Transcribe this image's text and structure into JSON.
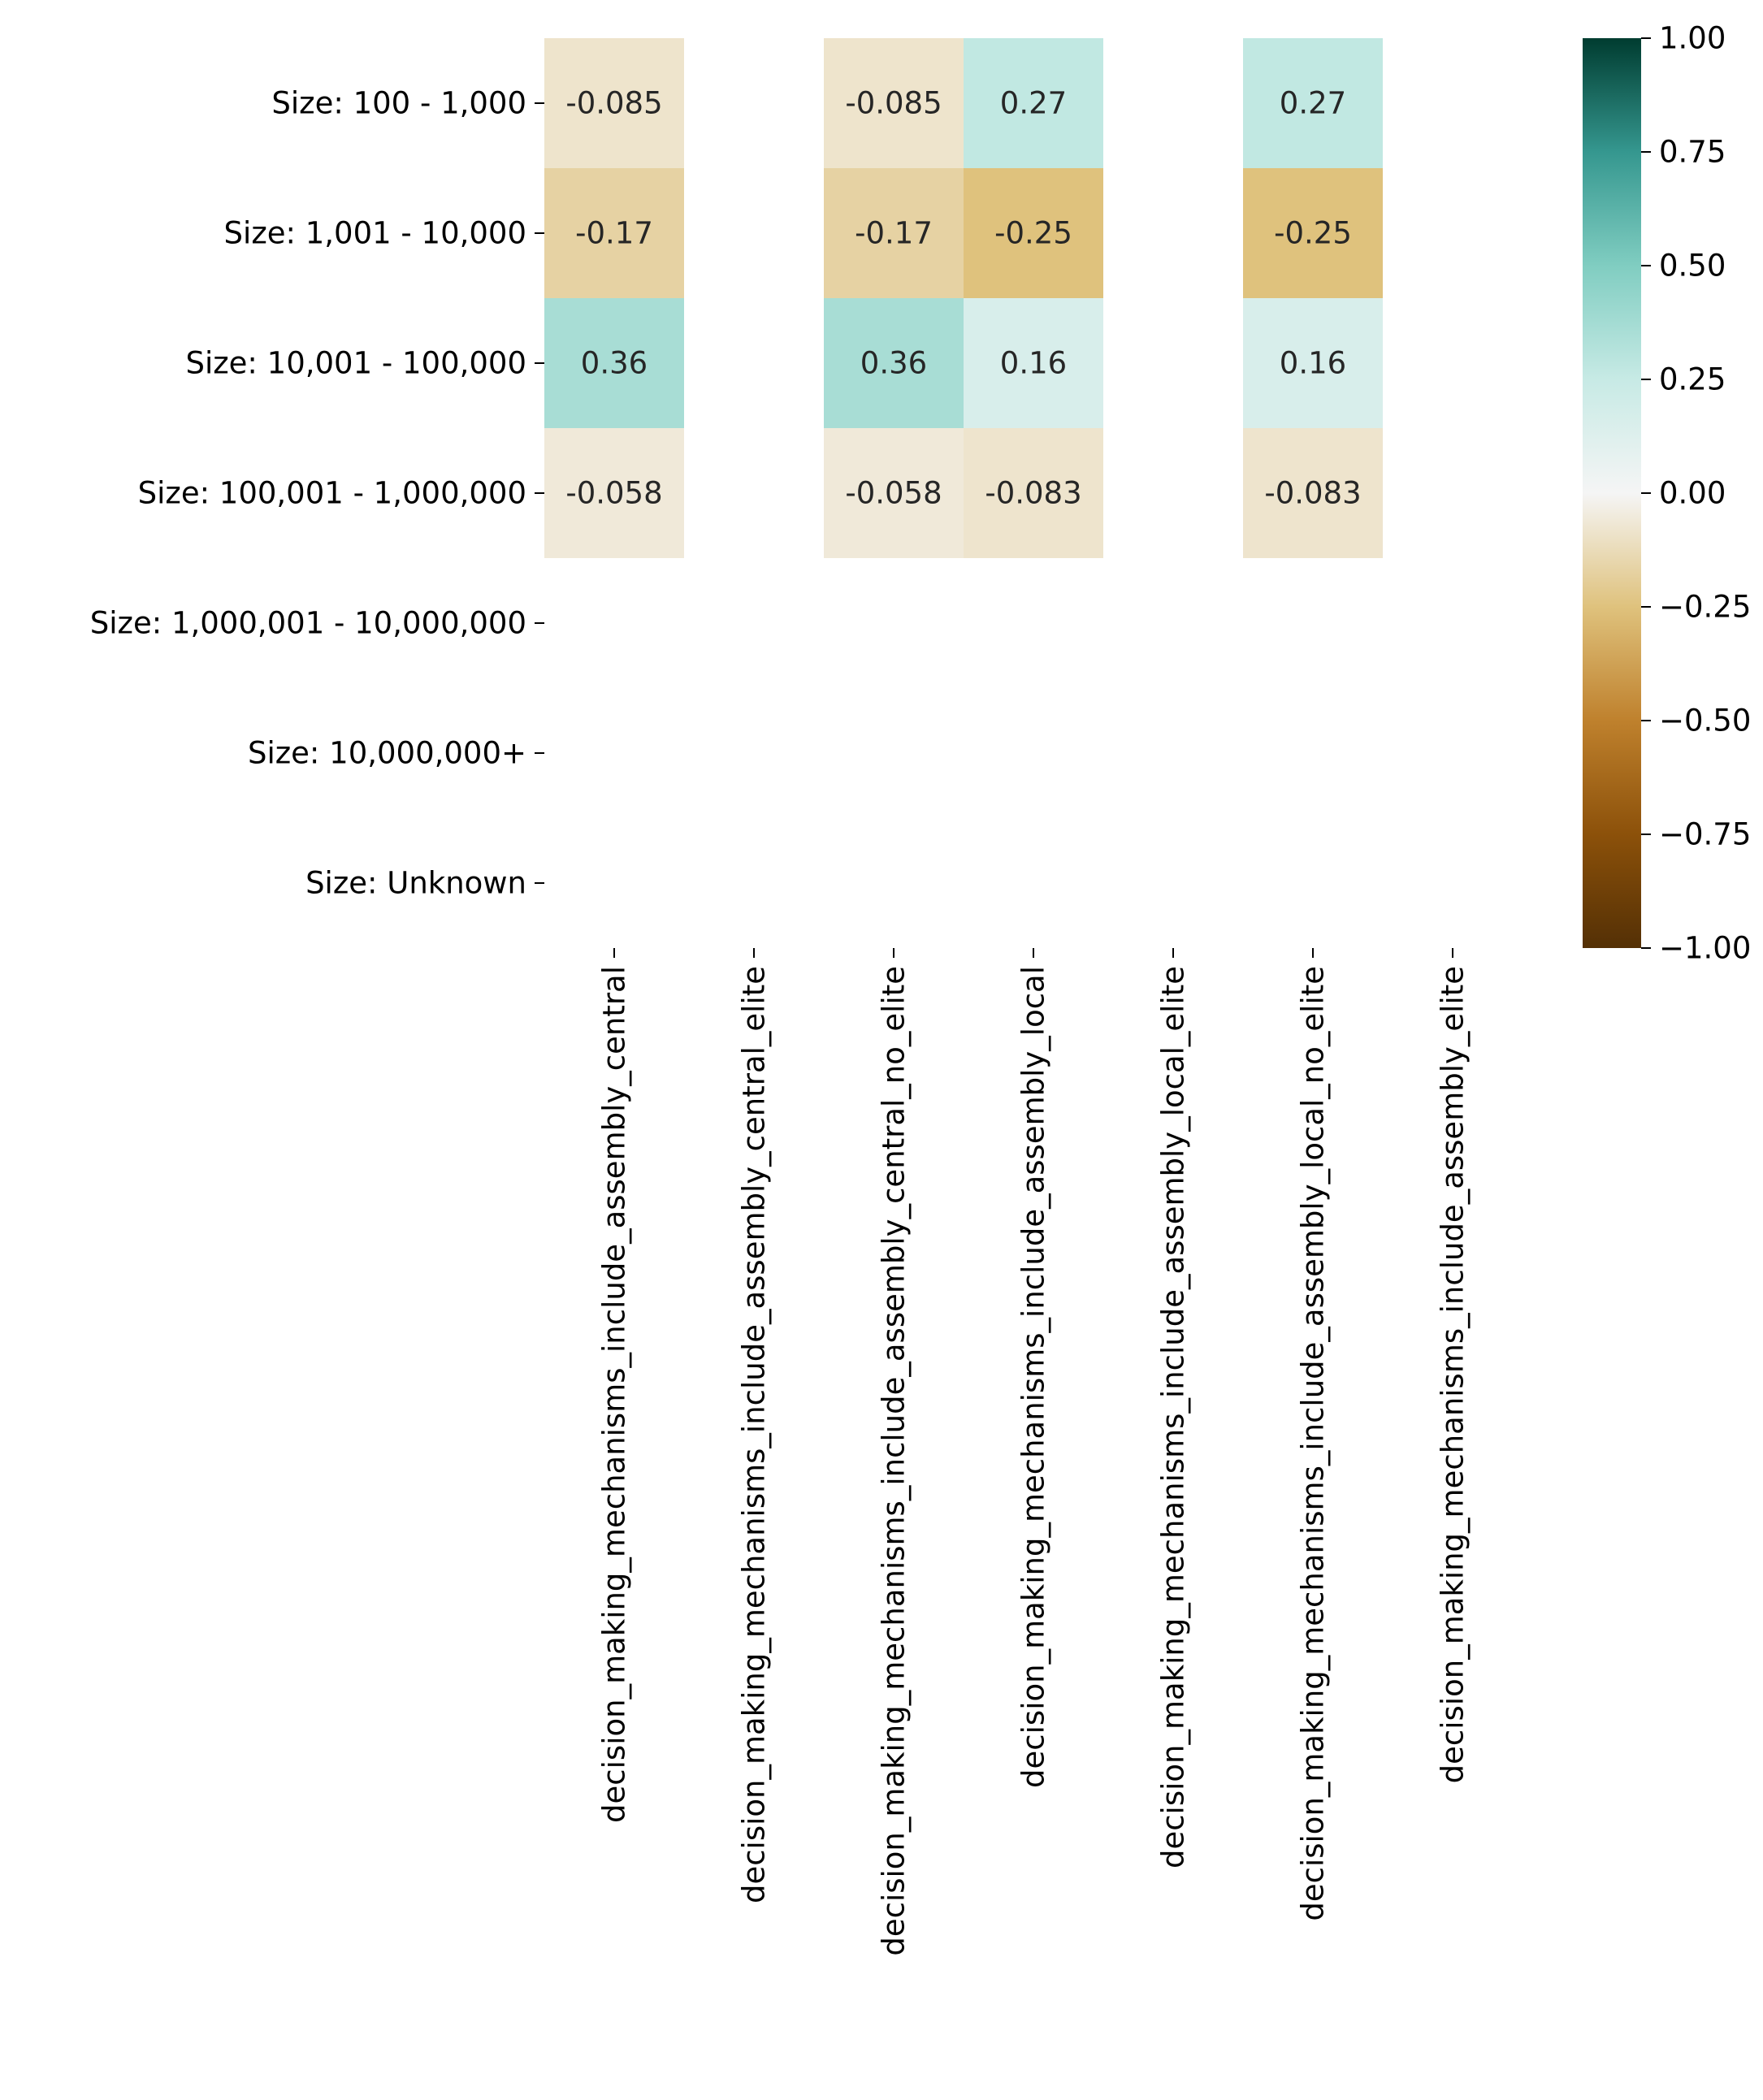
{
  "chart_data": {
    "type": "heatmap",
    "title": "",
    "xlabel": "",
    "ylabel": "",
    "rows": [
      "Size: 100 - 1,000",
      "Size: 1,001 - 10,000",
      "Size: 10,001 - 100,000",
      "Size: 100,001 - 1,000,000",
      "Size: 1,000,001 - 10,000,000",
      "Size: 10,000,000+",
      "Size: Unknown"
    ],
    "columns": [
      "decision_making_mechanisms_include_assembly_central",
      "decision_making_mechanisms_include_assembly_central_elite",
      "decision_making_mechanisms_include_assembly_central_no_elite",
      "decision_making_mechanisms_include_assembly_local",
      "decision_making_mechanisms_include_assembly_local_elite",
      "decision_making_mechanisms_include_assembly_local_no_elite",
      "decision_making_mechanisms_include_assembly_elite"
    ],
    "values": [
      [
        -0.085,
        null,
        -0.085,
        0.27,
        null,
        0.27,
        null
      ],
      [
        -0.17,
        null,
        -0.17,
        -0.25,
        null,
        -0.25,
        null
      ],
      [
        0.36,
        null,
        0.36,
        0.16,
        null,
        0.16,
        null
      ],
      [
        -0.058,
        null,
        -0.058,
        -0.083,
        null,
        -0.083,
        null
      ],
      [
        null,
        null,
        null,
        null,
        null,
        null,
        null
      ],
      [
        null,
        null,
        null,
        null,
        null,
        null,
        null
      ],
      [
        null,
        null,
        null,
        null,
        null,
        null,
        null
      ]
    ],
    "annotations": [
      [
        "-0.085",
        "",
        "-0.085",
        "0.27",
        "",
        "0.27",
        ""
      ],
      [
        "-0.17",
        "",
        "-0.17",
        "-0.25",
        "",
        "-0.25",
        ""
      ],
      [
        "0.36",
        "",
        "0.36",
        "0.16",
        "",
        "0.16",
        ""
      ],
      [
        "-0.058",
        "",
        "-0.058",
        "-0.083",
        "",
        "-0.083",
        ""
      ],
      [
        "",
        "",
        "",
        "",
        "",
        "",
        ""
      ],
      [
        "",
        "",
        "",
        "",
        "",
        "",
        ""
      ],
      [
        "",
        "",
        "",
        "",
        "",
        "",
        ""
      ]
    ],
    "colorbar": {
      "colormap": "BrBG",
      "vmin": -1.0,
      "vmax": 1.0,
      "ticks": [
        1.0,
        0.75,
        0.5,
        0.25,
        0.0,
        -0.25,
        -0.5,
        -0.75,
        -1.0
      ],
      "tick_labels": [
        "1.00",
        "0.75",
        "0.50",
        "0.25",
        "0.00",
        "−0.25",
        "−0.50",
        "−0.75",
        "−1.00"
      ],
      "stops": [
        {
          "v": -1.0,
          "color": "#543005"
        },
        {
          "v": -0.75,
          "color": "#8c510a"
        },
        {
          "v": -0.5,
          "color": "#bf812d"
        },
        {
          "v": -0.25,
          "color": "#dfc27d"
        },
        {
          "v": 0.0,
          "color": "#f5f5f5"
        },
        {
          "v": 0.25,
          "color": "#c7eae5"
        },
        {
          "v": 0.5,
          "color": "#80cdc1"
        },
        {
          "v": 0.75,
          "color": "#35978f"
        },
        {
          "v": 1.0,
          "color": "#003c30"
        }
      ]
    },
    "grid": false,
    "legend": "colorbar-right"
  }
}
